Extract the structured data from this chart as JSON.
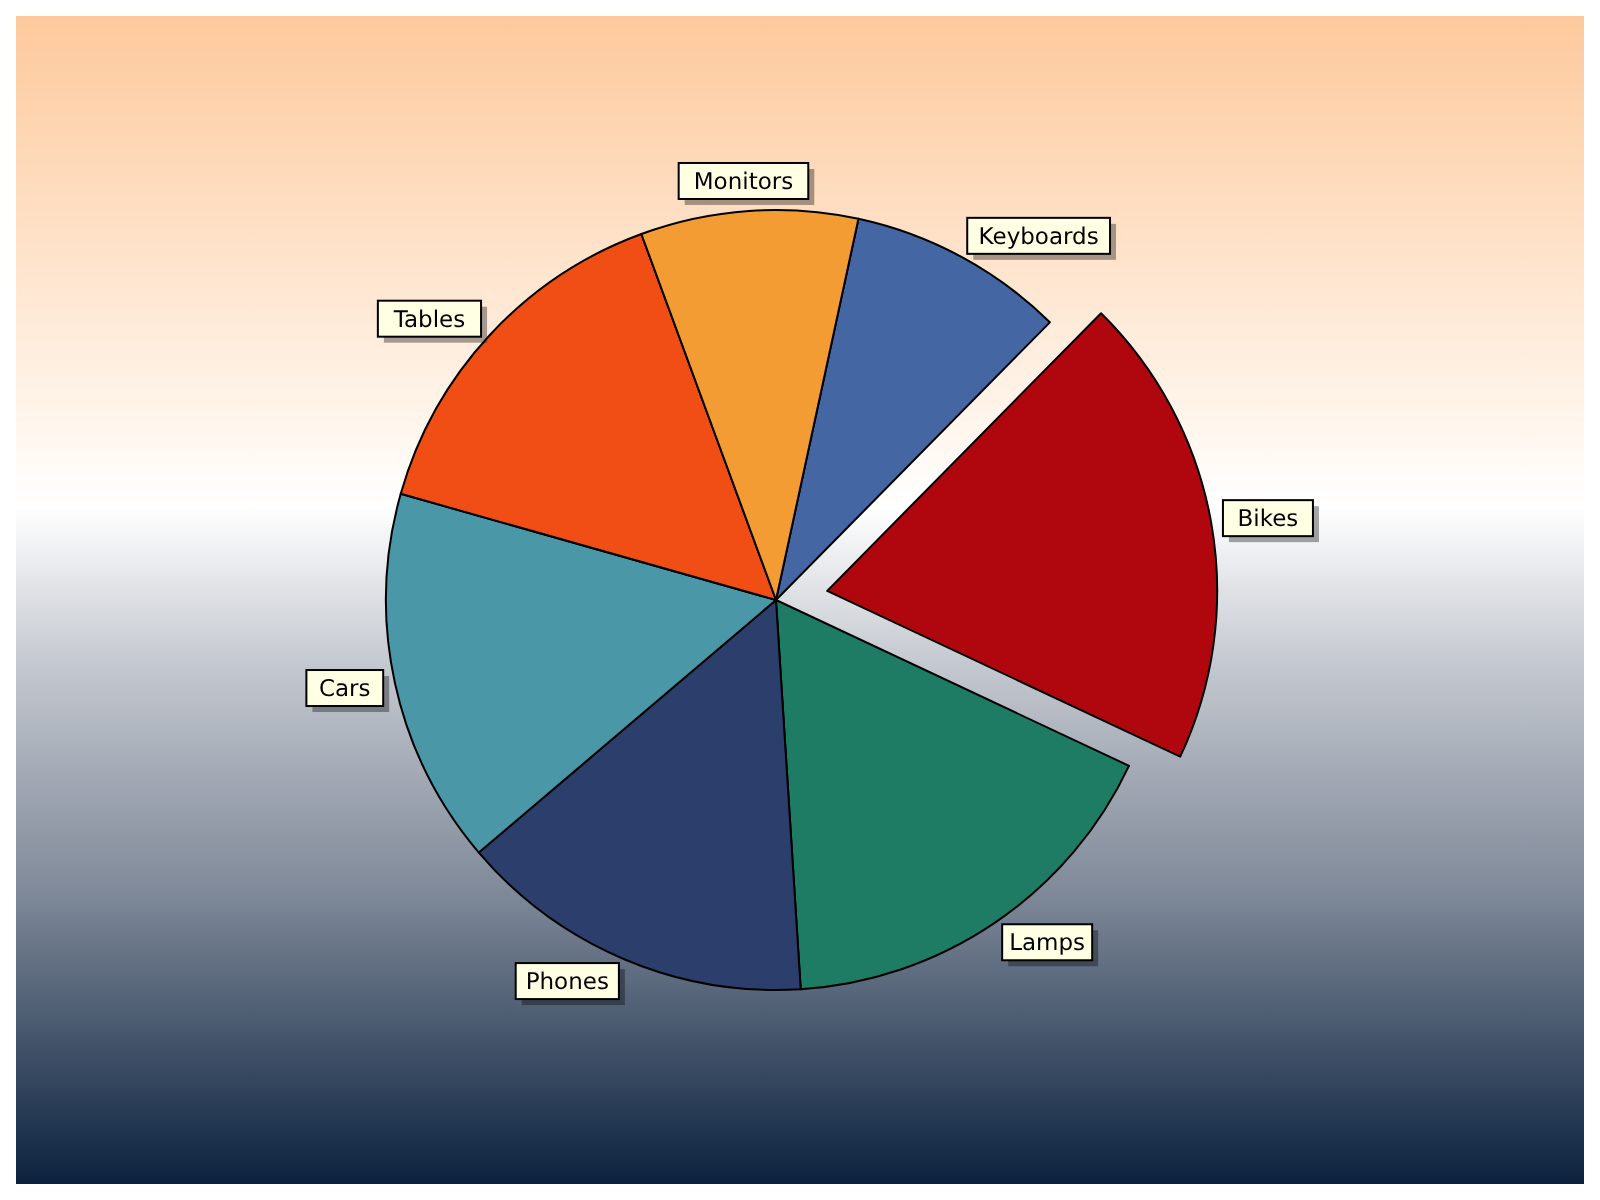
{
  "chart_data": {
    "type": "pie",
    "categories": [
      "Keyboards",
      "Bikes",
      "Lamps",
      "Phones",
      "Cars",
      "Tables",
      "Monitors"
    ],
    "values": [
      9.0,
      19.6,
      17.0,
      14.8,
      15.6,
      15.0,
      9.0
    ],
    "colors": [
      "#4466a3",
      "#b0070f",
      "#1e7b64",
      "#2c3e6b",
      "#4a97a8",
      "#f04e14",
      "#f39c33"
    ]
  }
}
